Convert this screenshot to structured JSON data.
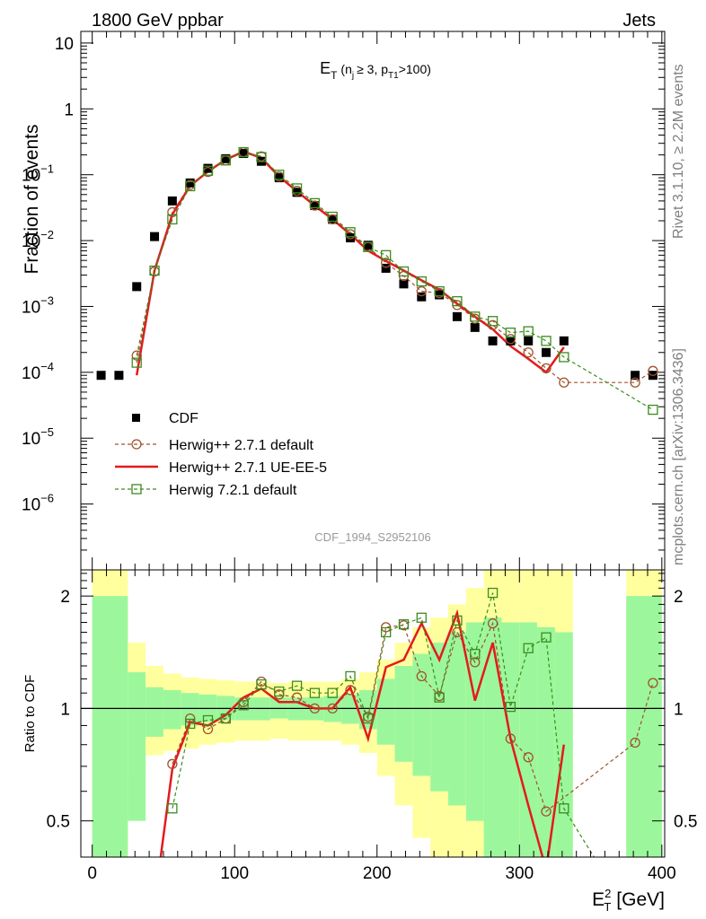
{
  "header": {
    "left": "1800 GeV ppbar",
    "right": "Jets"
  },
  "side_labels": {
    "rivet": "Rivet 3.1.10, ≥ 2.2M events",
    "mcplots": "mcplots.cern.ch [arXiv:1306.3436]"
  },
  "analysis_tag": "CDF_1994_S2952106",
  "chart_data": [
    {
      "panel": "main",
      "type": "scatter",
      "title": "E_T (n_j ≥ 3, p_T1 >100)",
      "title_parts": {
        "main": "E",
        "sub": "T",
        "rest": "(n",
        "sub2": "j",
        "mid": "≥ 3, p",
        "sub3": "T1",
        "end": ">100)"
      },
      "ylabel": "Fraction of events",
      "xlabel": "",
      "yscale": "log",
      "ylim": [
        1e-07,
        15
      ],
      "xlim": [
        -8,
        402
      ],
      "ytick_labels": [
        {
          "v": 10,
          "t": "10"
        },
        {
          "v": 1,
          "t": "1"
        },
        {
          "v": 0.1,
          "t": "10",
          "e": "−1"
        },
        {
          "v": 0.01,
          "t": "10",
          "e": "−2"
        },
        {
          "v": 0.001,
          "t": "10",
          "e": "−3"
        },
        {
          "v": 0.0001,
          "t": "10",
          "e": "−4"
        },
        {
          "v": 1e-05,
          "t": "10",
          "e": "−5"
        },
        {
          "v": 1e-06,
          "t": "10",
          "e": "−6"
        }
      ],
      "legend": [
        "CDF",
        "Herwig++ 2.7.1 default",
        "Herwig++ 2.7.1 UE-EE-5",
        "Herwig 7.2.1 default"
      ],
      "series": [
        {
          "name": "CDF",
          "color": "#000000",
          "marker": "square",
          "x": [
            6.25,
            18.75,
            31.25,
            43.75,
            56.25,
            68.75,
            81.25,
            93.75,
            106.25,
            118.75,
            131.25,
            143.75,
            156.25,
            168.75,
            181.25,
            193.75,
            206.25,
            218.75,
            231.25,
            243.75,
            256.25,
            268.75,
            281.25,
            293.75,
            306.25,
            318.75,
            331.25,
            381.25,
            393.75
          ],
          "y": [
            9e-05,
            9e-05,
            0.002,
            0.0115,
            0.04,
            0.075,
            0.125,
            0.175,
            0.21,
            0.16,
            0.09,
            0.054,
            0.034,
            0.021,
            0.011,
            0.0085,
            0.0038,
            0.0022,
            0.0014,
            0.0015,
            0.0007,
            0.00048,
            0.0003,
            0.0003,
            0.0003,
            0.0002,
            0.0003,
            9e-05,
            9e-05
          ]
        },
        {
          "name": "Herwig++ 2.7.1 default",
          "color": "#a0522d",
          "marker": "circle",
          "x": [
            31.25,
            43.75,
            56.25,
            68.75,
            81.25,
            93.75,
            106.25,
            118.75,
            131.25,
            143.75,
            156.25,
            168.75,
            181.25,
            193.75,
            206.25,
            218.75,
            231.25,
            243.75,
            256.25,
            268.75,
            281.25,
            293.75,
            306.25,
            318.75,
            331.25,
            381.25,
            393.75
          ],
          "y": [
            0.00018,
            0.0034,
            0.027,
            0.07,
            0.11,
            0.165,
            0.22,
            0.19,
            0.094,
            0.057,
            0.034,
            0.021,
            0.0125,
            0.008,
            0.0046,
            0.0029,
            0.0017,
            0.0016,
            0.00105,
            0.00065,
            0.00052,
            0.00032,
            0.0002,
            0.000115,
            7e-05,
            7e-05,
            0.000105
          ]
        },
        {
          "name": "Herwig++ 2.7.1 UE-EE-5",
          "color": "#e41a1c",
          "marker": "none",
          "x": [
            31.25,
            43.75,
            56.25,
            68.75,
            81.25,
            93.75,
            106.25,
            118.75,
            131.25,
            143.75,
            156.25,
            168.75,
            181.25,
            193.75,
            206.25,
            218.75,
            231.25,
            243.75,
            256.25,
            268.75,
            281.25,
            293.75,
            306.25,
            318.75,
            331.25
          ],
          "y": [
            9e-05,
            0.0035,
            0.025,
            0.068,
            0.112,
            0.17,
            0.225,
            0.18,
            0.094,
            0.056,
            0.034,
            0.021,
            0.0125,
            0.007,
            0.0049,
            0.0035,
            0.0025,
            0.0018,
            0.0011,
            0.0007,
            0.00045,
            0.00025,
            0.00016,
            0.0001,
            0.00024
          ]
        },
        {
          "name": "Herwig 7.2.1 default",
          "color": "#3c8c1e",
          "marker": "square-open",
          "x": [
            31.25,
            43.75,
            56.25,
            68.75,
            81.25,
            93.75,
            106.25,
            118.75,
            131.25,
            143.75,
            156.25,
            168.75,
            181.25,
            193.75,
            206.25,
            218.75,
            231.25,
            243.75,
            256.25,
            268.75,
            281.25,
            293.75,
            306.25,
            318.75,
            331.25,
            393.75
          ],
          "y": [
            0.00014,
            0.0035,
            0.021,
            0.067,
            0.115,
            0.165,
            0.22,
            0.185,
            0.1,
            0.062,
            0.037,
            0.023,
            0.0134,
            0.008,
            0.006,
            0.0034,
            0.0024,
            0.0017,
            0.0012,
            0.0007,
            0.0006,
            0.0004,
            0.00042,
            0.0003,
            0.00017,
            2.7e-05
          ]
        }
      ]
    },
    {
      "panel": "ratio",
      "type": "line",
      "ylabel": "Ratio to CDF",
      "xlabel": "E_T^2 [GeV]",
      "xlabel_parts": {
        "main": "E",
        "sup": "2",
        "sub": "T",
        "rest": "[GeV]"
      },
      "yscale": "log",
      "ylim": [
        0.4,
        2.35
      ],
      "xlim": [
        -8,
        402
      ],
      "ytick_labels": [
        {
          "v": 0.5,
          "t": "0.5"
        },
        {
          "v": 1,
          "t": "1"
        },
        {
          "v": 2,
          "t": "2"
        }
      ],
      "xtick_labels": [
        {
          "v": 0,
          "t": "0"
        },
        {
          "v": 100,
          "t": "100"
        },
        {
          "v": 200,
          "t": "200"
        },
        {
          "v": 300,
          "t": "300"
        },
        {
          "v": 400,
          "t": "400"
        }
      ],
      "uncertainty_bands": {
        "bin_low": [
          0,
          25,
          37.5,
          50,
          62.5,
          75,
          87.5,
          100,
          112.5,
          125,
          137.5,
          150,
          162.5,
          175,
          187.5,
          200,
          212.5,
          225,
          237.5,
          250,
          262.5,
          275,
          287.5,
          300,
          312.5,
          325,
          375,
          387.5
        ],
        "bin_high": [
          25,
          37.5,
          50,
          62.5,
          75,
          87.5,
          100,
          112.5,
          125,
          137.5,
          150,
          162.5,
          175,
          187.5,
          200,
          212.5,
          225,
          237.5,
          250,
          262.5,
          275,
          287.5,
          300,
          312.5,
          325,
          337.5,
          387.5,
          400
        ],
        "outer_lo": [
          0.1,
          0.66,
          0.75,
          0.77,
          0.78,
          0.8,
          0.81,
          0.82,
          0.82,
          0.83,
          0.82,
          0.82,
          0.82,
          0.8,
          0.76,
          0.66,
          0.55,
          0.45,
          0.4,
          0.35,
          0.3,
          0.2,
          0.2,
          0.2,
          0.2,
          0.2,
          0.1,
          0.1
        ],
        "outer_hi": [
          10,
          1.5,
          1.3,
          1.24,
          1.21,
          1.2,
          1.19,
          1.18,
          1.18,
          1.17,
          1.18,
          1.18,
          1.18,
          1.2,
          1.25,
          1.35,
          1.5,
          1.65,
          1.75,
          1.9,
          2.1,
          2.4,
          2.4,
          2.4,
          2.4,
          2.4,
          10,
          10
        ],
        "inner_lo": [
          0.1,
          0.5,
          0.84,
          0.88,
          0.9,
          0.92,
          0.93,
          0.93,
          0.93,
          0.94,
          0.93,
          0.93,
          0.92,
          0.91,
          0.88,
          0.8,
          0.72,
          0.66,
          0.6,
          0.55,
          0.5,
          0.4,
          0.4,
          0.4,
          0.4,
          0.4,
          0.1,
          0.1
        ],
        "inner_hi": [
          2.0,
          1.25,
          1.14,
          1.12,
          1.1,
          1.09,
          1.08,
          1.07,
          1.07,
          1.07,
          1.07,
          1.07,
          1.08,
          1.09,
          1.12,
          1.2,
          1.3,
          1.4,
          1.5,
          1.6,
          1.7,
          1.75,
          1.7,
          1.7,
          1.65,
          1.6,
          2.0,
          2.0
        ]
      },
      "series": [
        {
          "name": "Herwig++ 2.7.1 default",
          "color": "#a0522d",
          "marker": "circle",
          "x": [
            56.25,
            68.75,
            81.25,
            93.75,
            106.25,
            118.75,
            131.25,
            143.75,
            156.25,
            168.75,
            181.25,
            193.75,
            206.25,
            218.75,
            231.25,
            243.75,
            256.25,
            268.75,
            281.25,
            293.75,
            306.25,
            318.75,
            381.25,
            393.75
          ],
          "y": [
            0.71,
            0.94,
            0.88,
            0.94,
            1.04,
            1.18,
            1.09,
            1.07,
            1.0,
            1.0,
            1.12,
            0.95,
            1.65,
            1.67,
            1.22,
            1.08,
            1.6,
            1.33,
            1.69,
            0.83,
            0.74,
            0.53,
            0.81,
            1.17
          ]
        },
        {
          "name": "Herwig++ 2.7.1 UE-EE-5",
          "color": "#e41a1c",
          "marker": "none",
          "x": [
            43.75,
            56.25,
            68.75,
            81.25,
            93.75,
            106.25,
            118.75,
            131.25,
            143.75,
            156.25,
            168.75,
            181.25,
            193.75,
            206.25,
            218.75,
            231.25,
            243.75,
            256.25,
            268.75,
            281.25,
            293.75,
            306.25,
            318.75,
            331.25
          ],
          "y": [
            0.3,
            0.69,
            0.92,
            0.9,
            0.96,
            1.07,
            1.13,
            1.04,
            1.04,
            1.0,
            1.0,
            1.14,
            0.83,
            1.29,
            1.35,
            1.69,
            1.35,
            1.8,
            1.05,
            1.5,
            0.83,
            0.55,
            0.37,
            0.8
          ]
        },
        {
          "name": "Herwig 7.2.1 default",
          "color": "#3c8c1e",
          "marker": "square-open",
          "x": [
            56.25,
            68.75,
            81.25,
            93.75,
            106.25,
            118.75,
            131.25,
            143.75,
            156.25,
            168.75,
            181.25,
            193.75,
            206.25,
            218.75,
            231.25,
            243.75,
            256.25,
            268.75,
            281.25,
            293.75,
            306.25,
            318.75,
            331.25,
            356
          ],
          "y": [
            0.54,
            0.91,
            0.93,
            0.94,
            1.02,
            1.16,
            1.11,
            1.15,
            1.1,
            1.1,
            1.22,
            0.94,
            1.6,
            1.68,
            1.75,
            1.07,
            1.72,
            1.4,
            2.04,
            1.01,
            1.45,
            1.55,
            0.54,
            0.38
          ]
        }
      ]
    }
  ]
}
